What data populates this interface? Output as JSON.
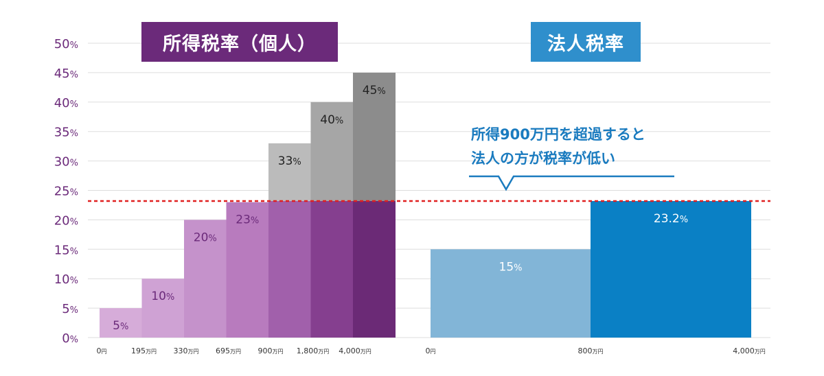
{
  "chart_data": [
    {
      "type": "bar",
      "title": "所得税率（個人）",
      "title_color": "#6b2a7a",
      "ylim": [
        0,
        50
      ],
      "yticks": [
        "0%",
        "5%",
        "10%",
        "15%",
        "20%",
        "25%",
        "30%",
        "35%",
        "40%",
        "45%",
        "50%"
      ],
      "x_edges": [
        0,
        195,
        330,
        695,
        900,
        1800,
        4000
      ],
      "x_edge_labels": [
        {
          "num": "0",
          "unit": "円"
        },
        {
          "num": "195",
          "unit": "万円"
        },
        {
          "num": "330",
          "unit": "万円"
        },
        {
          "num": "695",
          "unit": "万円"
        },
        {
          "num": "900",
          "unit": "万円"
        },
        {
          "num": "1,800",
          "unit": "万円"
        },
        {
          "num": "4,000",
          "unit": "万円"
        }
      ],
      "values": [
        5,
        10,
        20,
        23,
        33,
        40,
        45
      ],
      "labels": [
        {
          "num": "5",
          "unit": "%"
        },
        {
          "num": "10",
          "unit": "%"
        },
        {
          "num": "20",
          "unit": "%"
        },
        {
          "num": "23",
          "unit": "%"
        },
        {
          "num": "33",
          "unit": "%"
        },
        {
          "num": "40",
          "unit": "%"
        },
        {
          "num": "45",
          "unit": "%"
        }
      ],
      "lower_colors": [
        "#d6acd9",
        "#cfa2d4",
        "#c592cb",
        "#b87bbe",
        "#a160ab",
        "#853f8f",
        "#6b2a76"
      ],
      "upper_colors": [
        null,
        null,
        null,
        null,
        "#bbbbbb",
        "#a6a6a6",
        "#8c8c8c"
      ],
      "label_colors": [
        "#6b2a7a",
        "#6b2a7a",
        "#6b2a7a",
        "#6b2a7a",
        "#222222",
        "#222222",
        "#222222"
      ]
    },
    {
      "type": "bar",
      "title": "法人税率",
      "title_color": "#2f8fcc",
      "ylim": [
        0,
        50
      ],
      "x_edge_labels": [
        {
          "num": "0",
          "unit": "円"
        },
        {
          "num": "800",
          "unit": "万円"
        },
        {
          "num": "4,000",
          "unit": "万円"
        }
      ],
      "values": [
        15,
        23.2
      ],
      "labels": [
        {
          "num": "15",
          "unit": "%"
        },
        {
          "num": "23.2",
          "unit": "%"
        }
      ],
      "colors": [
        "#82b5d7",
        "#0a80c5"
      ],
      "label_colors": [
        "#ffffff",
        "#ffffff"
      ]
    }
  ],
  "reference_line": {
    "value": 23.2,
    "color": "#e02020"
  },
  "annotation": {
    "line1": "所得900万円を超過すると",
    "line2": "法人の方が税率が低い",
    "color": "#1a7bbf"
  },
  "colors": {
    "axis_text": "#6b2a7a",
    "grid": "#dddddd",
    "tick_text": "#333333"
  }
}
